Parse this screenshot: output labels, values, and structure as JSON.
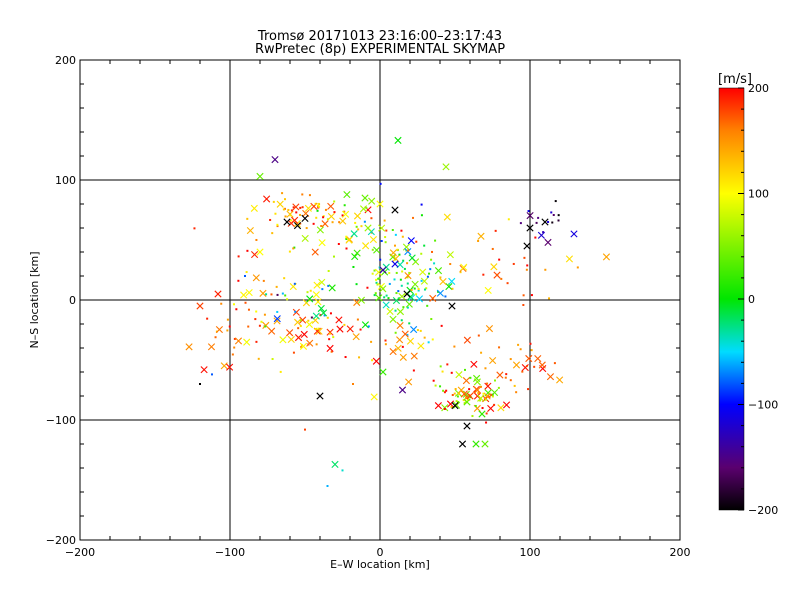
{
  "chart_data": {
    "type": "scatter",
    "title": "Tromsø 20171013 23:16:00–23:17:43",
    "subtitle": "RwPretec (8p) EXPERIMENTAL SKYMAP",
    "xlabel": "E–W location [km]",
    "ylabel": "N–S location [km]",
    "xlim": [
      -200,
      200
    ],
    "ylim": [
      -200,
      200
    ],
    "x_ticks": [
      "−200",
      "−100",
      "0",
      "100",
      "200"
    ],
    "y_ticks": [
      "−200",
      "−100",
      "0",
      "100",
      "200"
    ],
    "grid_lines_km": [
      -100,
      0,
      100
    ],
    "colorbar": {
      "label": "[m/s]",
      "range": [
        -200,
        200
      ],
      "ticks": [
        "200",
        "100",
        "0",
        "−100",
        "−200"
      ],
      "tick_values": [
        200,
        100,
        0,
        -100,
        -200
      ]
    },
    "marker_types": [
      "dot",
      "cross"
    ],
    "clusters": [
      {
        "x": -55,
        "y": 75,
        "sx": 12,
        "sy": 8,
        "n": 45,
        "v_mean": 150,
        "v_spread": 50
      },
      {
        "x": -25,
        "y": 60,
        "sx": 18,
        "sy": 12,
        "n": 40,
        "v_mean": 120,
        "v_spread": 120
      },
      {
        "x": 15,
        "y": 10,
        "sx": 15,
        "sy": 18,
        "n": 90,
        "v_mean": 10,
        "v_spread": 90
      },
      {
        "x": -50,
        "y": -25,
        "sx": 22,
        "sy": 18,
        "n": 65,
        "v_mean": 150,
        "v_spread": 70
      },
      {
        "x": 62,
        "y": -78,
        "sx": 12,
        "sy": 10,
        "n": 70,
        "v_mean": 120,
        "v_spread": 100
      },
      {
        "x": 90,
        "y": -55,
        "sx": 15,
        "sy": 15,
        "n": 35,
        "v_mean": 170,
        "v_spread": 30
      },
      {
        "x": 75,
        "y": 25,
        "sx": 30,
        "sy": 22,
        "n": 40,
        "v_mean": 160,
        "v_spread": 60
      },
      {
        "x": 5,
        "y": 45,
        "sx": 15,
        "sy": 20,
        "n": 40,
        "v_mean": 40,
        "v_spread": 150
      },
      {
        "x": -80,
        "y": 20,
        "sx": 15,
        "sy": 20,
        "n": 25,
        "v_mean": 150,
        "v_spread": 60
      },
      {
        "x": 110,
        "y": 65,
        "sx": 8,
        "sy": 10,
        "n": 15,
        "v_mean": -150,
        "v_spread": 60
      },
      {
        "x": -105,
        "y": -30,
        "sx": 10,
        "sy": 12,
        "n": 15,
        "v_mean": 170,
        "v_spread": 30
      },
      {
        "x": 10,
        "y": -40,
        "sx": 20,
        "sy": 15,
        "n": 25,
        "v_mean": 160,
        "v_spread": 60
      },
      {
        "x": -50,
        "y": 0,
        "sx": 12,
        "sy": 12,
        "n": 22,
        "v_mean": -20,
        "v_spread": 150
      }
    ],
    "points": [
      {
        "x": 12,
        "y": 133,
        "v": 0,
        "m": "cross"
      },
      {
        "x": 44,
        "y": 111,
        "v": 60,
        "m": "cross"
      },
      {
        "x": -70,
        "y": 117,
        "v": -150,
        "m": "cross"
      },
      {
        "x": -80,
        "y": 103,
        "v": 40,
        "m": "cross"
      },
      {
        "x": -30,
        "y": -137,
        "v": -20,
        "m": "cross"
      },
      {
        "x": -25,
        "y": -142,
        "v": -40,
        "m": "dot"
      },
      {
        "x": -35,
        "y": -155,
        "v": -60,
        "m": "dot"
      },
      {
        "x": -50,
        "y": -108,
        "v": 180,
        "m": "dot"
      },
      {
        "x": -120,
        "y": -70,
        "v": -200,
        "m": "dot"
      },
      {
        "x": -120,
        "y": -5,
        "v": 180,
        "m": "cross"
      },
      {
        "x": -108,
        "y": 5,
        "v": 190,
        "m": "cross"
      },
      {
        "x": -112,
        "y": -62,
        "v": -80,
        "m": "dot"
      },
      {
        "x": -90,
        "y": 20,
        "v": -80,
        "m": "dot"
      },
      {
        "x": -80,
        "y": 40,
        "v": 100,
        "m": "cross"
      },
      {
        "x": -40,
        "y": -80,
        "v": -200,
        "m": "cross"
      },
      {
        "x": -18,
        "y": -70,
        "v": 160,
        "m": "dot"
      },
      {
        "x": 2,
        "y": -60,
        "v": 20,
        "m": "cross"
      },
      {
        "x": 15,
        "y": -75,
        "v": -150,
        "m": "cross"
      },
      {
        "x": 48,
        "y": -5,
        "v": -200,
        "m": "cross"
      },
      {
        "x": 64,
        "y": -120,
        "v": 20,
        "m": "cross"
      },
      {
        "x": 70,
        "y": -120,
        "v": 40,
        "m": "cross"
      },
      {
        "x": 55,
        "y": -120,
        "v": -200,
        "m": "cross"
      },
      {
        "x": 58,
        "y": -105,
        "v": -200,
        "m": "cross"
      },
      {
        "x": 100,
        "y": 60,
        "v": -200,
        "m": "cross"
      },
      {
        "x": 98,
        "y": 45,
        "v": -200,
        "m": "cross"
      },
      {
        "x": 112,
        "y": 48,
        "v": -160,
        "m": "cross"
      },
      {
        "x": 110,
        "y": 65,
        "v": -200,
        "m": "cross"
      },
      {
        "x": -62,
        "y": 65,
        "v": -200,
        "m": "cross"
      },
      {
        "x": -55,
        "y": 62,
        "v": -200,
        "m": "cross"
      },
      {
        "x": -50,
        "y": 68,
        "v": -200,
        "m": "cross"
      },
      {
        "x": -15,
        "y": 70,
        "v": 120,
        "m": "cross"
      },
      {
        "x": -8,
        "y": 60,
        "v": 60,
        "m": "cross"
      },
      {
        "x": -10,
        "y": 85,
        "v": 40,
        "m": "cross"
      },
      {
        "x": 0,
        "y": 80,
        "v": 100,
        "m": "cross"
      },
      {
        "x": 10,
        "y": 75,
        "v": -200,
        "m": "cross"
      },
      {
        "x": 18,
        "y": 5,
        "v": -200,
        "m": "cross"
      },
      {
        "x": 10,
        "y": 30,
        "v": -110,
        "m": "cross"
      },
      {
        "x": 2,
        "y": 25,
        "v": -140,
        "m": "cross"
      },
      {
        "x": 65,
        "y": -75,
        "v": 160,
        "m": "cross"
      },
      {
        "x": 60,
        "y": -80,
        "v": 180,
        "m": "cross"
      },
      {
        "x": 50,
        "y": -88,
        "v": -200,
        "m": "cross"
      },
      {
        "x": 68,
        "y": -95,
        "v": 20,
        "m": "cross"
      },
      {
        "x": 58,
        "y": -85,
        "v": 40,
        "m": "cross"
      }
    ]
  }
}
